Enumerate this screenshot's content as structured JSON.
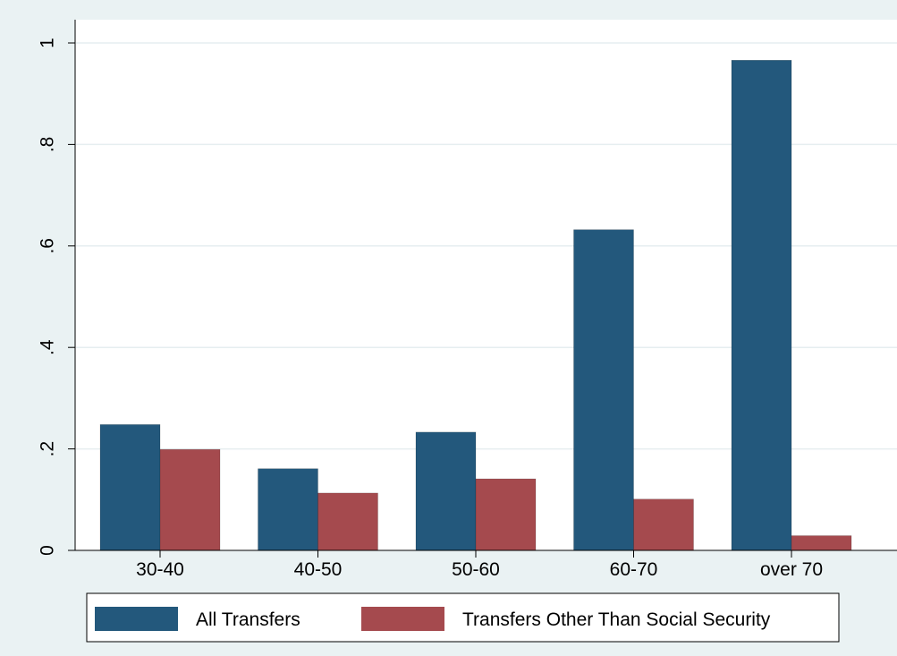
{
  "colors": {
    "background": "#eaf2f3",
    "plot_background": "#ffffff",
    "gridline": "#e6eef0",
    "axis": "#000000",
    "all_transfers": "#23587c",
    "other_transfers": "#a54a4e"
  },
  "chart_data": {
    "type": "bar",
    "title": "",
    "xlabel": "",
    "ylabel": "",
    "categories": [
      "30-40",
      "40-50",
      "50-60",
      "60-70",
      "over 70"
    ],
    "series": [
      {
        "name": "All Transfers",
        "values": [
          0.248,
          0.161,
          0.233,
          0.632,
          0.966
        ]
      },
      {
        "name": "Transfers Other Than Social Security",
        "values": [
          0.199,
          0.113,
          0.141,
          0.101,
          0.029
        ]
      }
    ],
    "ylim": [
      0,
      1
    ],
    "yticks": [
      0,
      0.2,
      0.4,
      0.6,
      0.8,
      1
    ],
    "ytick_labels": [
      "0",
      ".2",
      ".4",
      ".6",
      ".8",
      "1"
    ],
    "grid": true,
    "legend_position": "bottom"
  }
}
